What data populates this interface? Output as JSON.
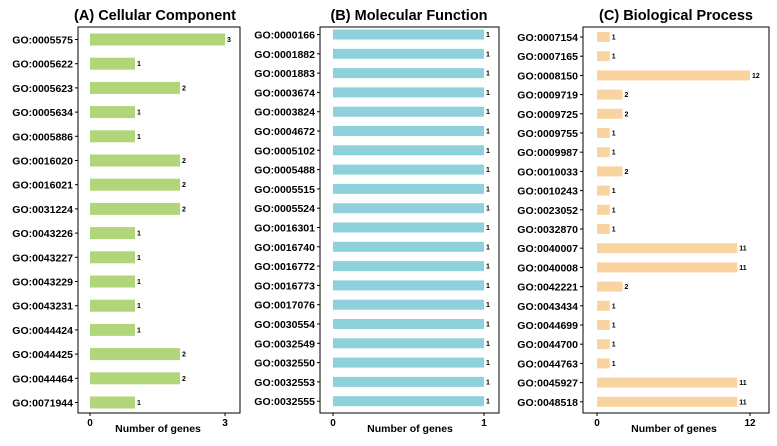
{
  "colors": {
    "panel_a": "#b1d67a",
    "panel_b": "#8fd0dd",
    "panel_c": "#f9d3a0"
  },
  "chart_data": [
    {
      "type": "bar",
      "orientation": "horizontal",
      "title": "(A) Cellular Component",
      "xlabel": "Number of genes",
      "xlim": [
        0,
        3
      ],
      "xticks": [
        "0",
        "3"
      ],
      "categories": [
        "GO:0005575",
        "GO:0005622",
        "GO:0005623",
        "GO:0005634",
        "GO:0005886",
        "GO:0016020",
        "GO:0016021",
        "GO:0031224",
        "GO:0043226",
        "GO:0043227",
        "GO:0043229",
        "GO:0043231",
        "GO:0044424",
        "GO:0044425",
        "GO:0044464",
        "GO:0071944"
      ],
      "values": [
        3,
        1,
        2,
        1,
        1,
        2,
        2,
        2,
        1,
        1,
        1,
        1,
        1,
        2,
        2,
        1
      ],
      "value_labels": [
        "3",
        "1",
        "2",
        "1",
        "1",
        "2",
        "2",
        "2",
        "1",
        "1",
        "1",
        "1",
        "1",
        "2",
        "2",
        "1"
      ]
    },
    {
      "type": "bar",
      "orientation": "horizontal",
      "title": "(B) Molecular Function",
      "xlabel": "Number of genes",
      "xlim": [
        0,
        1
      ],
      "xticks": [
        "0",
        "1"
      ],
      "categories": [
        "GO:0000166",
        "GO:0001882",
        "GO:0001883",
        "GO:0003674",
        "GO:0003824",
        "GO:0004672",
        "GO:0005102",
        "GO:0005488",
        "GO:0005515",
        "GO:0005524",
        "GO:0016301",
        "GO:0016740",
        "GO:0016772",
        "GO:0016773",
        "GO:0017076",
        "GO:0030554",
        "GO:0032549",
        "GO:0032550",
        "GO:0032553",
        "GO:0032555"
      ],
      "values": [
        1,
        1,
        1,
        1,
        1,
        1,
        1,
        1,
        1,
        1,
        1,
        1,
        1,
        1,
        1,
        1,
        1,
        1,
        1,
        1
      ],
      "value_labels": [
        "1",
        "1",
        "1",
        "1",
        "1",
        "1",
        "1",
        "1",
        "1",
        "1",
        "1",
        "1",
        "1",
        "1",
        "1",
        "1",
        "1",
        "1",
        "1",
        "1"
      ]
    },
    {
      "type": "bar",
      "orientation": "horizontal",
      "title": "(C) Biological Process",
      "xlabel": "Number of genes",
      "xlim": [
        0,
        12
      ],
      "xticks": [
        "0",
        "12"
      ],
      "categories": [
        "GO:0007154",
        "GO:0007165",
        "GO:0008150",
        "GO:0009719",
        "GO:0009725",
        "GO:0009755",
        "GO:0009987",
        "GO:0010033",
        "GO:0010243",
        "GO:0023052",
        "GO:0032870",
        "GO:0040007",
        "GO:0040008",
        "GO:0042221",
        "GO:0043434",
        "GO:0044699",
        "GO:0044700",
        "GO:0044763",
        "GO:0045927",
        "GO:0048518"
      ],
      "values": [
        1,
        1,
        12,
        2,
        2,
        1,
        1,
        2,
        1,
        1,
        1,
        11,
        11,
        2,
        1,
        1,
        1,
        1,
        11,
        11
      ],
      "value_labels": [
        "1",
        "1",
        "12",
        "2",
        "2",
        "1",
        "1",
        "2",
        "1",
        "1",
        "1",
        "11",
        "11",
        "2",
        "1",
        "1",
        "1",
        "1",
        "11",
        "11"
      ]
    }
  ]
}
